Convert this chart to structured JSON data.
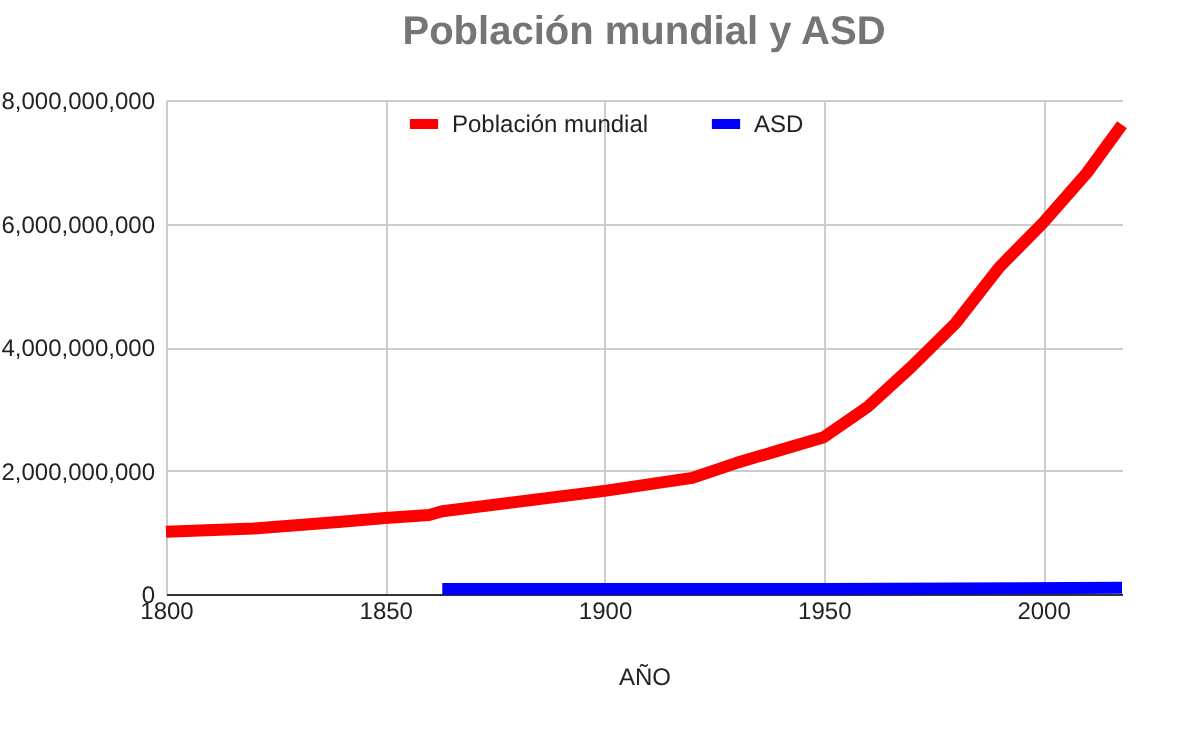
{
  "chart_data": {
    "type": "line",
    "title": "Población mundial y ASD",
    "xlabel": "AÑO",
    "xlim": [
      1800,
      2018
    ],
    "xticks": [
      1800,
      1850,
      1900,
      1950,
      2000
    ],
    "ylim": [
      0,
      8000000000
    ],
    "yticks": [
      {
        "value": 0,
        "label": "0"
      },
      {
        "value": 2000000000,
        "label": "2,000,000,000"
      },
      {
        "value": 4000000000,
        "label": "4,000,000,000"
      },
      {
        "value": 6000000000,
        "label": "6,000,000,000"
      },
      {
        "value": 8000000000,
        "label": "8,000,000,000"
      }
    ],
    "grid": true,
    "legend": "top",
    "line_style": "solid",
    "series": [
      {
        "name": "Población mundial",
        "color": "#ff0000",
        "x": [
          1800,
          1820,
          1840,
          1850,
          1860,
          1863,
          1900,
          1920,
          1930,
          1940,
          1950,
          1960,
          1970,
          1980,
          1990,
          2000,
          2010,
          2018
        ],
        "values": [
          1010000000,
          1060000000,
          1170000000,
          1230000000,
          1280000000,
          1340000000,
          1670000000,
          1880000000,
          2120000000,
          2330000000,
          2540000000,
          3030000000,
          3680000000,
          4380000000,
          5290000000,
          6010000000,
          6820000000,
          7600000000
        ]
      },
      {
        "name": "ASD",
        "color": "#0000ff",
        "x": [
          1863,
          1950,
          2018
        ],
        "values": [
          80000000,
          80000000,
          100000000
        ]
      }
    ]
  }
}
